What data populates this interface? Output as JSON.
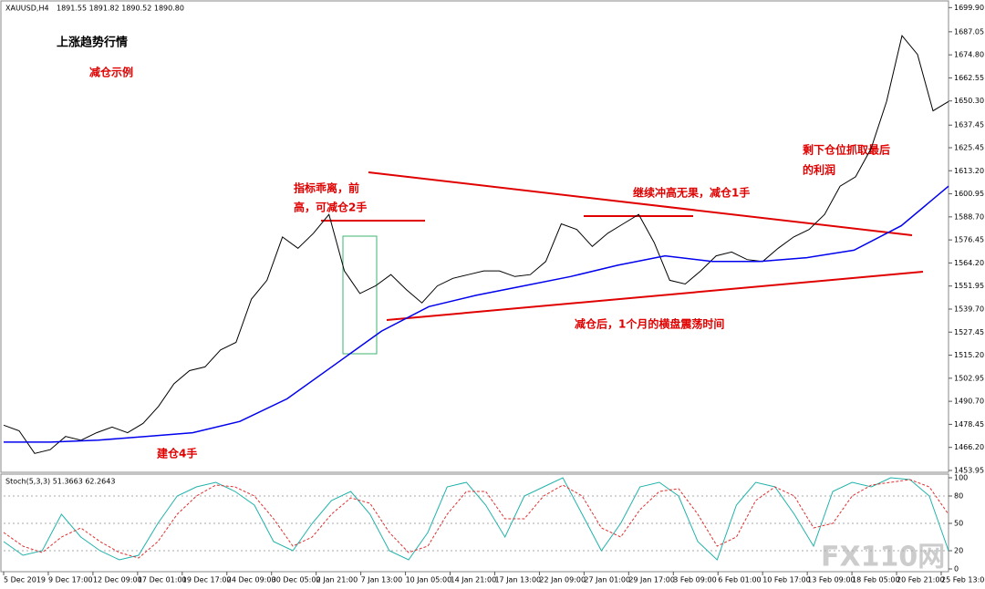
{
  "header": {
    "symbol": "XAUUSD,H4",
    "quotes": "1891.55 1891.82 1890.52 1890.80"
  },
  "annotations": {
    "title": "上涨趋势行情",
    "subtitle": "减仓示例",
    "divergence_1": "指标乖离，前",
    "divergence_2": "高，可减仓2手",
    "push": "继续冲高无果，减仓1手",
    "rest_1": "剩下仓位抓取最后",
    "rest_2": "的利润",
    "sideways": "减仓后，1个月的横盘震荡时间",
    "entry": "建仓4手"
  },
  "watermark": "FX110网",
  "chart_data": [
    {
      "type": "line",
      "ylim": [
        1452,
        1702
      ],
      "yticks": [
        {
          "value": 1699.9,
          "label": "1699.90"
        },
        {
          "value": 1687.05,
          "label": "1687.05"
        },
        {
          "value": 1674.8,
          "label": "1674.80"
        },
        {
          "value": 1662.55,
          "label": "1662.55"
        },
        {
          "value": 1650.3,
          "label": "1650.30"
        },
        {
          "value": 1637.45,
          "label": "1637.45"
        },
        {
          "value": 1625.45,
          "label": "1625.45"
        },
        {
          "value": 1613.2,
          "label": "1613.20"
        },
        {
          "value": 1600.95,
          "label": "1600.95"
        },
        {
          "value": 1588.7,
          "label": "1588.70"
        },
        {
          "value": 1576.45,
          "label": "1576.45"
        },
        {
          "value": 1564.2,
          "label": "1564.20"
        },
        {
          "value": 1551.95,
          "label": "1551.95"
        },
        {
          "value": 1539.7,
          "label": "1539.70"
        },
        {
          "value": 1527.45,
          "label": "1527.45"
        },
        {
          "value": 1515.2,
          "label": "1515.20"
        },
        {
          "value": 1502.95,
          "label": "1502.95"
        },
        {
          "value": 1490.7,
          "label": "1490.70"
        },
        {
          "value": 1478.45,
          "label": "1478.45"
        },
        {
          "value": 1466.2,
          "label": "1466.20"
        },
        {
          "value": 1453.95,
          "label": "1453.95"
        }
      ],
      "series": [
        {
          "name": "XAUUSD",
          "color": "#000000",
          "values": [
            1478,
            1475,
            1463,
            1465,
            1472,
            1470,
            1474,
            1477,
            1474,
            1479,
            1488,
            1500,
            1507,
            1509,
            1518,
            1522,
            1545,
            1555,
            1578,
            1572,
            1580,
            1590,
            1560,
            1548,
            1552,
            1558,
            1550,
            1543,
            1552,
            1556,
            1558,
            1560,
            1560,
            1557,
            1558,
            1565,
            1585,
            1582,
            1573,
            1580,
            1585,
            1590,
            1575,
            1555,
            1553,
            1560,
            1568,
            1570,
            1566,
            1565,
            1572,
            1578,
            1582,
            1590,
            1605,
            1610,
            1625,
            1650,
            1685,
            1675,
            1645,
            1650
          ]
        },
        {
          "name": "MA",
          "color": "#0000ee",
          "values": [
            1469,
            1469,
            1470,
            1472,
            1474,
            1480,
            1492,
            1510,
            1528,
            1541,
            1547,
            1552,
            1557,
            1563,
            1568,
            1565,
            1565,
            1567,
            1571,
            1584,
            1605
          ]
        }
      ]
    },
    {
      "type": "line",
      "title": "Stoch(5,3,3) 51.3663 62.2643",
      "ylim": [
        0,
        100
      ],
      "yticks": [
        0,
        20,
        50,
        80,
        100
      ],
      "series": [
        {
          "name": "main",
          "color": "#20b2aa",
          "values": [
            30,
            15,
            20,
            60,
            35,
            20,
            10,
            15,
            50,
            80,
            90,
            95,
            85,
            70,
            30,
            20,
            50,
            75,
            85,
            60,
            20,
            10,
            40,
            90,
            95,
            70,
            35,
            80,
            90,
            100,
            60,
            20,
            50,
            90,
            95,
            80,
            30,
            10,
            70,
            95,
            90,
            60,
            25,
            85,
            95,
            90,
            100,
            98,
            80,
            20
          ]
        },
        {
          "name": "signal",
          "color": "#e03030",
          "values": [
            40,
            25,
            18,
            35,
            45,
            30,
            18,
            12,
            30,
            60,
            80,
            92,
            90,
            80,
            55,
            25,
            35,
            60,
            78,
            72,
            40,
            18,
            25,
            60,
            85,
            85,
            55,
            55,
            80,
            92,
            80,
            45,
            35,
            65,
            85,
            88,
            60,
            25,
            35,
            75,
            90,
            80,
            45,
            50,
            80,
            92,
            95,
            98,
            90,
            60
          ]
        }
      ]
    },
    {
      "type": "axis",
      "categories": [
        "5 Dec 2019",
        "9 Dec 17:00",
        "12 Dec 09:00",
        "17 Dec 01:00",
        "19 Dec 17:00",
        "24 Dec 09:00",
        "30 Dec 05:00",
        "2 Jan 21:00",
        "7 Jan 13:00",
        "10 Jan 05:00",
        "14 Jan 21:00",
        "17 Jan 13:00",
        "22 Jan 09:00",
        "27 Jan 01:00",
        "29 Jan 17:00",
        "3 Feb 09:00",
        "6 Feb 01:00",
        "10 Feb 17:00",
        "13 Feb 09:00",
        "18 Feb 05:00",
        "20 Feb 21:00",
        "25 Feb 13:00"
      ]
    }
  ]
}
